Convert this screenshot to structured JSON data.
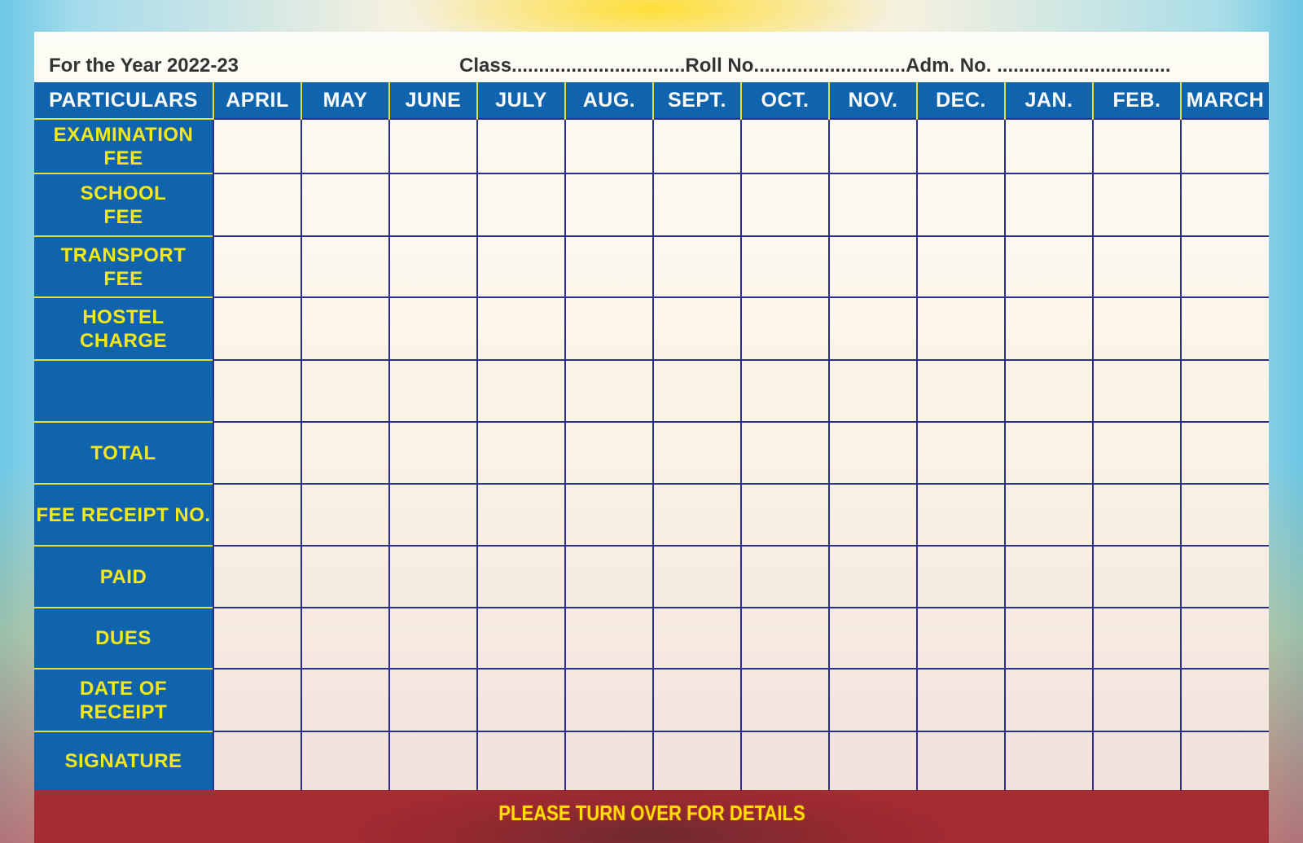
{
  "header": {
    "year_label": "For the Year 2022-23",
    "student_fields": "Class................................Roll No............................Adm. No. ................................"
  },
  "table": {
    "columns": [
      "PARTICULARS",
      "APRIL",
      "MAY",
      "JUNE",
      "JULY",
      "AUG.",
      "SEPT.",
      "OCT.",
      "NOV.",
      "DEC.",
      "JAN.",
      "FEB.",
      "MARCH"
    ],
    "rows": [
      {
        "line1": "EXAMINATION",
        "line2": "FEE"
      },
      {
        "line1": "SCHOOL",
        "line2": "FEE"
      },
      {
        "line1": "TRANSPORT",
        "line2": "FEE"
      },
      {
        "line1": "HOSTEL",
        "line2": "CHARGE"
      },
      {
        "line1": "",
        "line2": ""
      },
      {
        "line1": "TOTAL",
        "line2": ""
      },
      {
        "line1": "FEE RECEIPT NO.",
        "line2": ""
      },
      {
        "line1": "PAID",
        "line2": ""
      },
      {
        "line1": "DUES",
        "line2": ""
      },
      {
        "line1": "DATE OF",
        "line2": "RECEIPT"
      },
      {
        "line1": "SIGNATURE",
        "line2": ""
      }
    ]
  },
  "footer": {
    "text": "PLEASE TURN OVER FOR DETAILS"
  },
  "colors": {
    "header_blue": "#0f64ad",
    "label_yellow": "#f5e71a",
    "grid_navy": "#2b2f8c",
    "footer_red": "#9b2a30"
  }
}
